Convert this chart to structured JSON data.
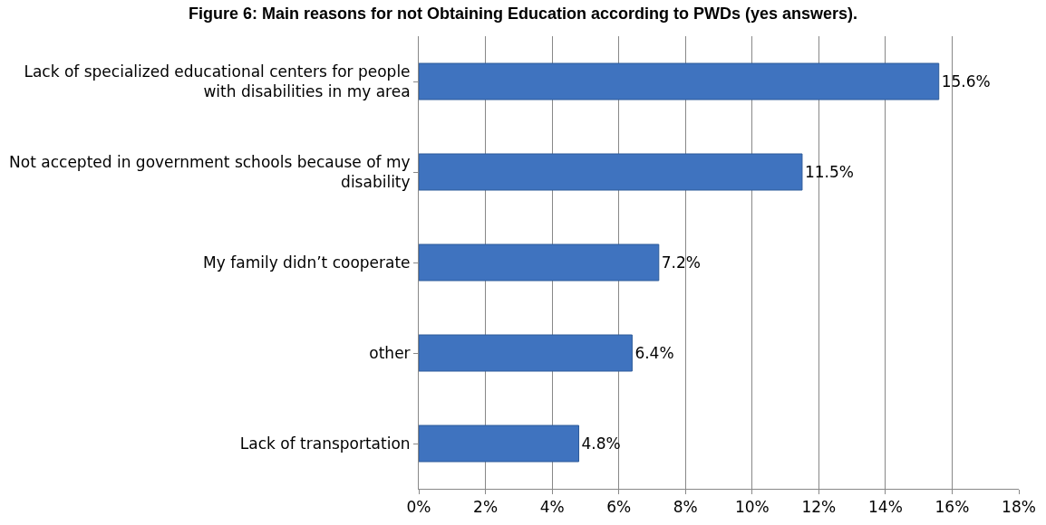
{
  "chart_data": {
    "type": "bar",
    "orientation": "horizontal",
    "title": "Figure 6: Main reasons for not Obtaining Education according to PWDs (yes answers).",
    "categories": [
      "Lack of specialized educational centers for people with disabilities in my area",
      "Not accepted in government schools because of my disability",
      "My family didn’t cooperate",
      "other",
      "Lack of transportation"
    ],
    "values": [
      15.6,
      11.5,
      7.2,
      6.4,
      4.8
    ],
    "value_labels": [
      "15.6%",
      "11.5%",
      "7.2%",
      "6.4%",
      "4.8%"
    ],
    "color": "#3f73bf",
    "xlim": [
      0,
      18
    ],
    "xticks": [
      {
        "value": 0,
        "label": "0%"
      },
      {
        "value": 2,
        "label": "2%"
      },
      {
        "value": 4,
        "label": "4%"
      },
      {
        "value": 6,
        "label": "6%"
      },
      {
        "value": 8,
        "label": "8%"
      },
      {
        "value": 10,
        "label": "10%"
      },
      {
        "value": 12,
        "label": "12%"
      },
      {
        "value": 14,
        "label": "14%"
      },
      {
        "value": 16,
        "label": "16%"
      },
      {
        "value": 18,
        "label": "18%"
      }
    ],
    "grid": "x",
    "legend": false
  }
}
